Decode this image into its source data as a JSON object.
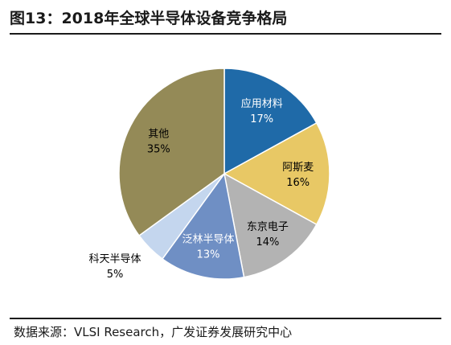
{
  "title": "图13：2018年全球半导体设备竞争格局",
  "source": "数据来源：VLSI Research，广发证券发展研究中心",
  "chart_data": {
    "type": "pie",
    "start_angle_deg": 0,
    "direction": "clockwise",
    "slices": [
      {
        "label": "应用材料",
        "value": 17,
        "value_label": "17%",
        "color": "#1F6AA8",
        "text_color": "#ffffff"
      },
      {
        "label": "阿斯麦",
        "value": 16,
        "value_label": "16%",
        "color": "#E8C865",
        "text_color": "#000000"
      },
      {
        "label": "东京电子",
        "value": 14,
        "value_label": "14%",
        "color": "#B3B3B3",
        "text_color": "#000000"
      },
      {
        "label": "泛林半导体",
        "value": 13,
        "value_label": "13%",
        "color": "#6F8FC4",
        "text_color": "#ffffff"
      },
      {
        "label": "科天半导体",
        "value": 5,
        "value_label": "5%",
        "color": "#C4D6EE",
        "text_color": "#000000"
      },
      {
        "label": "其他",
        "value": 35,
        "value_label": "35%",
        "color": "#948A57",
        "text_color": "#000000"
      }
    ]
  }
}
